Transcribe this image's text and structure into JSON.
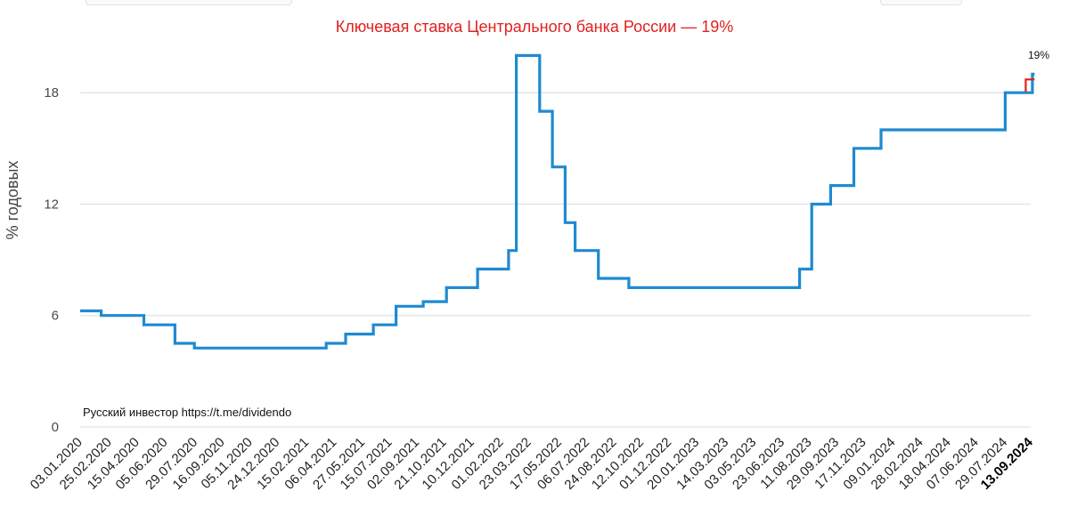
{
  "chart_data": {
    "type": "line",
    "title": "Ключевая ставка Центрального банка России — 19%",
    "ylabel": "% годовых",
    "xlabel": "",
    "ylim": [
      0,
      20.5
    ],
    "y_ticks": [
      0,
      6,
      12,
      18
    ],
    "x_tick_labels": [
      "03.01.2020",
      "25.02.2020",
      "15.04.2020",
      "05.06.2020",
      "29.07.2020",
      "16.09.2020",
      "05.11.2020",
      "24.12.2020",
      "15.02.2021",
      "06.04.2021",
      "27.05.2021",
      "15.07.2021",
      "02.09.2021",
      "21.10.2021",
      "10.12.2021",
      "01.02.2022",
      "23.03.2022",
      "17.05.2022",
      "06.07.2022",
      "24.08.2022",
      "12.10.2022",
      "01.12.2022",
      "20.01.2023",
      "14.03.2023",
      "03.05.2023",
      "23.06.2023",
      "11.08.2023",
      "29.09.2023",
      "17.11.2023",
      "09.01.2024",
      "28.02.2024",
      "18.04.2024",
      "07.06.2024",
      "29.07.2024",
      "13.09.2024"
    ],
    "grid": true,
    "line_shape": "step",
    "colors": {
      "line": "#1f8ad1",
      "title": "#e02020",
      "marker": "#e02020",
      "grid": "#dde3ea"
    },
    "series": [
      {
        "x": [
          "2020-01-03",
          "2020-02-10",
          "2020-04-27",
          "2020-06-22",
          "2020-07-27",
          "2021-03-22",
          "2021-04-26",
          "2021-06-15",
          "2021-07-26",
          "2021-09-13",
          "2021-10-25",
          "2021-12-20",
          "2022-02-14",
          "2022-02-28",
          "2022-04-11",
          "2022-05-04",
          "2022-05-27",
          "2022-06-14",
          "2022-07-26",
          "2022-09-19",
          "2023-07-24",
          "2023-08-15",
          "2023-09-18",
          "2023-10-30",
          "2023-12-18",
          "2024-07-29",
          "2024-09-16",
          "2024-09-20"
        ],
        "y": [
          6.25,
          6.0,
          5.5,
          4.5,
          4.25,
          4.5,
          5.0,
          5.5,
          6.5,
          6.75,
          7.5,
          8.5,
          9.5,
          20.0,
          17.0,
          14.0,
          11.0,
          9.5,
          8.0,
          7.5,
          8.5,
          12.0,
          13.0,
          15.0,
          16.0,
          18.0,
          19.0,
          19.0
        ]
      }
    ],
    "annotations": [
      {
        "text": "Русский инвестор https://t.me/dividendo"
      },
      {
        "text": "19%"
      }
    ]
  }
}
